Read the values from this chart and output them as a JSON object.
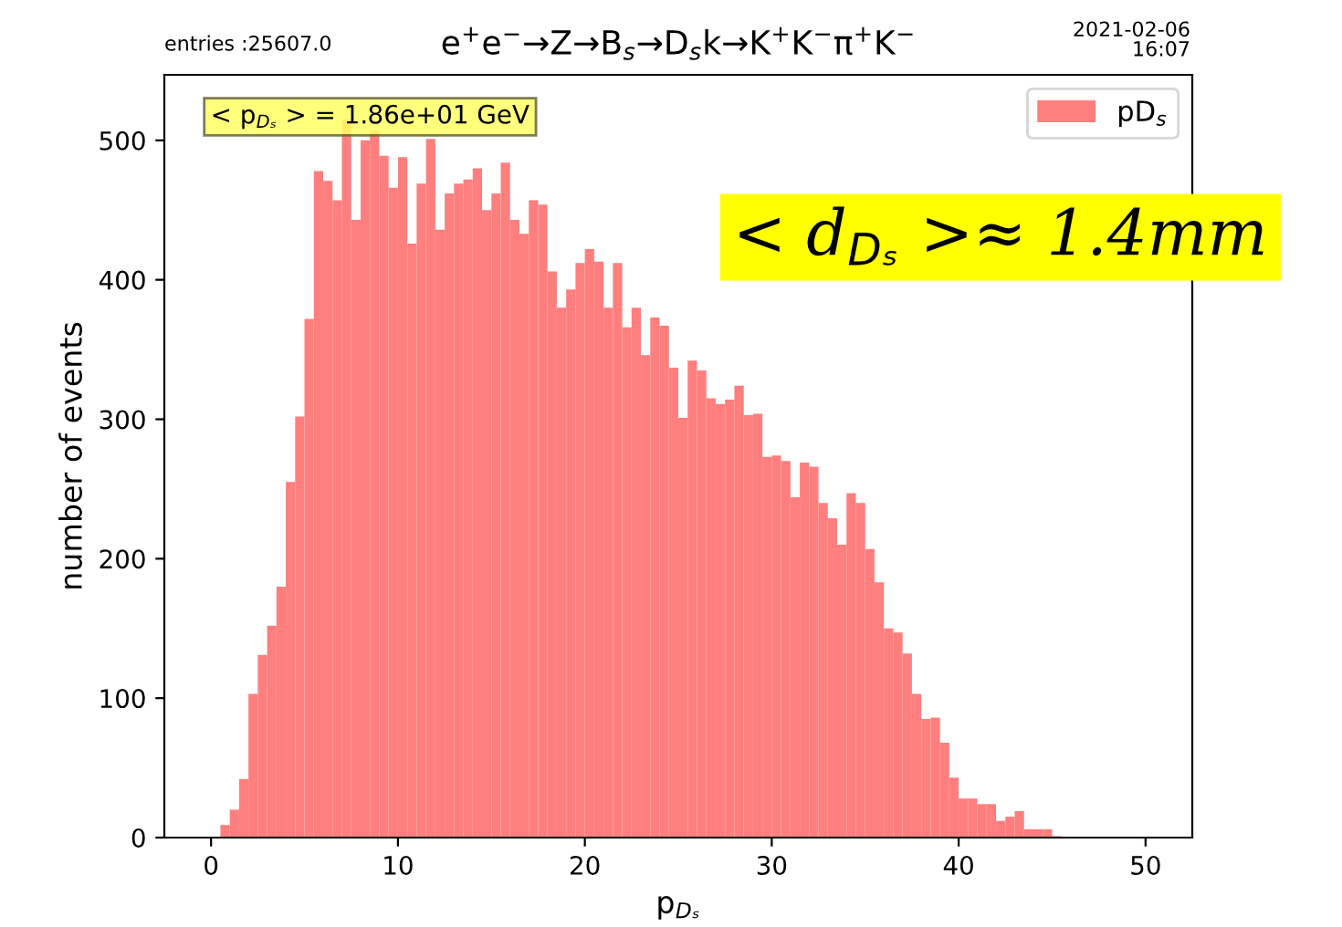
{
  "chart_data": {
    "type": "histogram",
    "title": "e$^{+}$e$^{−}$→Z→B$_{s}$→D$_{s}$k→K$^{+}$K$^{−}$π$^{+}$K$^{−}$",
    "xlabel": "p$_{Dₛ}$",
    "ylabel": "number of events",
    "annotations": [
      "entries :25607.0",
      "2021-02-06\n16:07",
      "< p$_{Dₛ}$ > = 1.86e+01 GeV",
      "< d$_{Dₛ}$ >≈ 1.4mm"
    ],
    "bins": [
      0.5,
      1,
      1.5,
      2,
      2.5,
      3,
      3.5,
      4,
      4.5,
      5,
      5.5,
      6,
      6.5,
      7,
      7.5,
      8,
      8.5,
      9,
      9.5,
      10,
      10.5,
      11,
      11.5,
      12,
      12.5,
      13,
      13.5,
      14,
      14.5,
      15,
      15.5,
      16,
      16.5,
      17,
      17.5,
      18,
      18.5,
      19,
      19.5,
      20,
      20.5,
      21,
      21.5,
      22,
      22.5,
      23,
      23.5,
      24,
      24.5,
      25,
      25.5,
      26,
      26.5,
      27,
      27.5,
      28,
      28.5,
      29,
      29.5,
      30,
      30.5,
      31,
      31.5,
      32,
      32.5,
      33,
      33.5,
      34,
      34.5,
      35,
      35.5,
      36,
      36.5,
      37,
      37.5,
      38,
      38.5,
      39,
      39.5,
      40,
      40.5,
      41,
      41.5,
      42,
      42.5,
      43,
      43.5,
      44,
      44.5,
      45,
      45.5
    ],
    "series": [
      {
        "name": "pD$_{s}$",
        "color": "#ff7f7f",
        "values": [
          9,
          20,
          42,
          103,
          131,
          152,
          180,
          255,
          302,
          372,
          478,
          471,
          457,
          515,
          443,
          500,
          507,
          489,
          466,
          488,
          426,
          469,
          501,
          436,
          462,
          469,
          472,
          480,
          450,
          462,
          484,
          443,
          433,
          457,
          454,
          406,
          380,
          393,
          412,
          422,
          413,
          380,
          412,
          366,
          380,
          346,
          373,
          367,
          337,
          301,
          342,
          335,
          315,
          311,
          314,
          324,
          303,
          304,
          273,
          274,
          270,
          244,
          269,
          266,
          240,
          229,
          210,
          247,
          240,
          207,
          183,
          150,
          147,
          132,
          103,
          85,
          86,
          68,
          43,
          28,
          28,
          24,
          24,
          12,
          15,
          19,
          6,
          6,
          6,
          1
        ]
      }
    ],
    "xlim": [
      -2.5,
      52.5
    ],
    "ylim": [
      0,
      547
    ],
    "xticks": [
      0,
      10,
      20,
      30,
      40,
      50
    ],
    "yticks": [
      0,
      100,
      200,
      300,
      400,
      500
    ],
    "legend": "top right",
    "grid": false
  }
}
